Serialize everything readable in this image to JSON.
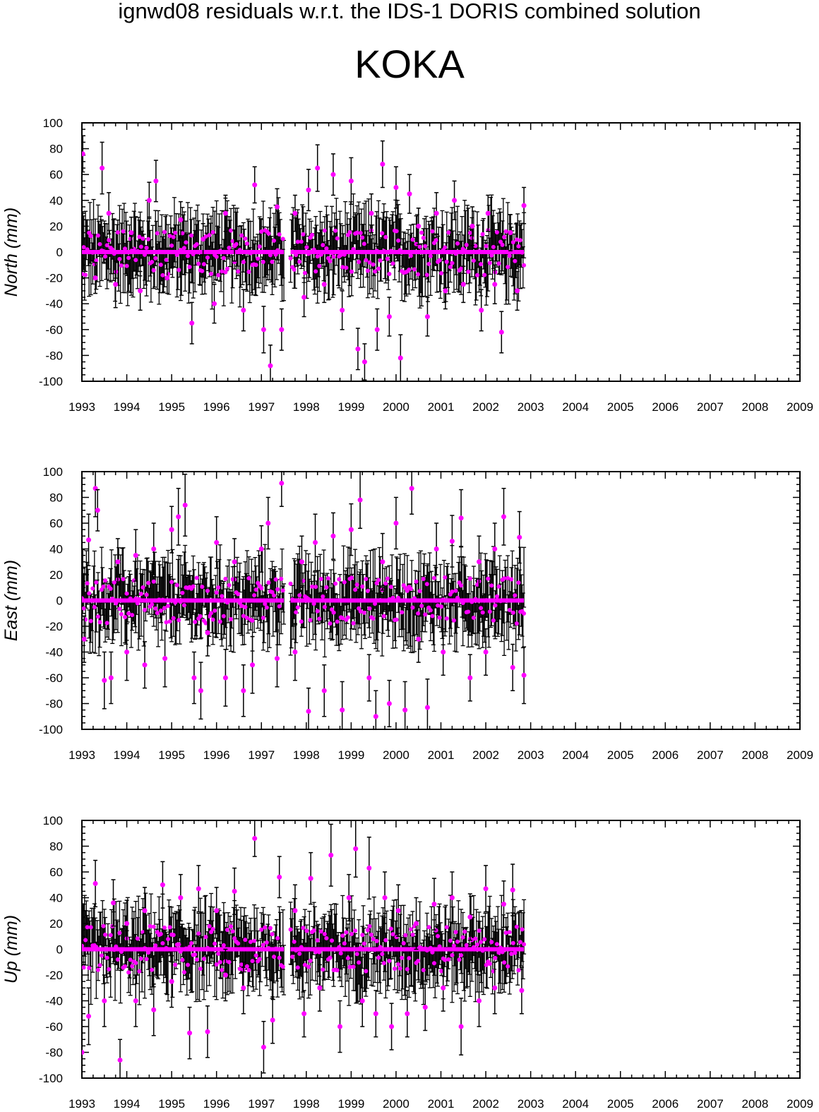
{
  "page": {
    "title": "ignwd08 residuals w.r.t. the IDS-1 DORIS combined solution",
    "station": "KOKA"
  },
  "colors": {
    "marker": "#ff00ff",
    "errorbar": "#000000",
    "axis": "#000000"
  },
  "chart_data": [
    {
      "type": "scatter",
      "ylabel": "North (mm)",
      "xlim": [
        1993,
        2009
      ],
      "ylim": [
        -100,
        100
      ],
      "x_ticks": [
        "1993",
        "1994",
        "1995",
        "1996",
        "1997",
        "1998",
        "1999",
        "2000",
        "2001",
        "2002",
        "2003",
        "2004",
        "2005",
        "2006",
        "2007",
        "2008",
        "2009"
      ],
      "y_ticks": [
        "100",
        "80",
        "60",
        "40",
        "20",
        "0",
        "-20",
        "-40",
        "-60",
        "-80",
        "-100"
      ],
      "grid": false,
      "data_span": [
        1993.0,
        1997.5,
        1997.65,
        2002.85
      ],
      "series": [
        {
          "x": [
            1993.02,
            1993.3,
            1993.45,
            1993.6,
            1993.75,
            1994.1,
            1994.3,
            1994.5,
            1994.65,
            1994.9,
            1995.2,
            1995.45,
            1995.7,
            1995.95,
            1996.2,
            1996.4,
            1996.6,
            1996.85,
            1997.05,
            1997.2,
            1997.35,
            1997.45,
            1997.75,
            1997.95,
            1998.05,
            1998.25,
            1998.4,
            1998.6,
            1998.8,
            1999.0,
            1999.15,
            1999.3,
            1999.45,
            1999.58,
            1999.7,
            1999.85,
            2000.0,
            2000.1,
            2000.3,
            2000.5,
            2000.7,
            2000.9,
            2001.1,
            2001.3,
            2001.5,
            2001.7,
            2001.9,
            2002.05,
            2002.2,
            2002.35,
            2002.55,
            2002.7,
            2002.85
          ],
          "y": [
            76,
            -20,
            65,
            30,
            -25,
            15,
            -30,
            40,
            55,
            -20,
            25,
            -55,
            10,
            -40,
            30,
            5,
            -45,
            52,
            -60,
            -88,
            35,
            -60,
            30,
            -35,
            48,
            65,
            -25,
            60,
            -45,
            55,
            -75,
            -85,
            30,
            -60,
            68,
            -50,
            50,
            -82,
            45,
            20,
            -50,
            30,
            -30,
            40,
            -25,
            20,
            -45,
            30,
            -25,
            -62,
            15,
            -30,
            36
          ],
          "err": [
            14,
            12,
            20,
            16,
            18,
            12,
            15,
            14,
            16,
            12,
            14,
            16,
            12,
            15,
            14,
            12,
            16,
            14,
            18,
            16,
            14,
            16,
            14,
            15,
            16,
            18,
            14,
            16,
            15,
            18,
            16,
            14,
            15,
            16,
            18,
            15,
            16,
            18,
            15,
            14,
            15,
            16,
            14,
            15,
            14,
            15,
            16,
            14,
            15,
            16,
            14,
            15,
            14
          ]
        }
      ]
    },
    {
      "type": "scatter",
      "ylabel": "East (mm)",
      "xlim": [
        1993,
        2009
      ],
      "ylim": [
        -100,
        100
      ],
      "x_ticks": [
        "1993",
        "1994",
        "1995",
        "1996",
        "1997",
        "1998",
        "1999",
        "2000",
        "2001",
        "2002",
        "2003",
        "2004",
        "2005",
        "2006",
        "2007",
        "2008",
        "2009"
      ],
      "y_ticks": [
        "100",
        "80",
        "60",
        "40",
        "20",
        "0",
        "-20",
        "-40",
        "-60",
        "-80",
        "-100"
      ],
      "grid": false,
      "data_span": [
        1993.0,
        1997.5,
        1997.65,
        2002.85
      ],
      "series": [
        {
          "x": [
            1993.05,
            1993.15,
            1993.3,
            1993.35,
            1993.5,
            1993.65,
            1993.8,
            1994.0,
            1994.2,
            1994.4,
            1994.6,
            1994.85,
            1995.0,
            1995.15,
            1995.3,
            1995.5,
            1995.65,
            1995.8,
            1996.0,
            1996.2,
            1996.4,
            1996.6,
            1996.8,
            1997.0,
            1997.15,
            1997.35,
            1997.45,
            1997.75,
            1997.9,
            1998.05,
            1998.2,
            1998.4,
            1998.6,
            1998.8,
            1999.0,
            1999.2,
            1999.4,
            1999.55,
            1999.7,
            1999.85,
            2000.0,
            2000.2,
            2000.35,
            2000.5,
            2000.7,
            2000.9,
            2001.05,
            2001.25,
            2001.45,
            2001.65,
            2001.85,
            2002.0,
            2002.2,
            2002.4,
            2002.6,
            2002.75,
            2002.85
          ],
          "y": [
            -30,
            47,
            87,
            70,
            -62,
            -60,
            30,
            -40,
            35,
            -50,
            40,
            -45,
            55,
            65,
            74,
            -60,
            -70,
            -25,
            45,
            -60,
            30,
            -70,
            -50,
            40,
            60,
            -45,
            91,
            -40,
            30,
            -86,
            45,
            -70,
            50,
            -85,
            55,
            78,
            -60,
            -90,
            30,
            -80,
            60,
            -85,
            87,
            -30,
            -83,
            40,
            -40,
            46,
            64,
            -60,
            30,
            -40,
            40,
            65,
            -52,
            49,
            -58
          ],
          "err": [
            18,
            20,
            22,
            16,
            22,
            20,
            18,
            22,
            20,
            18,
            20,
            22,
            18,
            22,
            24,
            20,
            22,
            18,
            20,
            22,
            18,
            20,
            22,
            18,
            20,
            22,
            18,
            22,
            20,
            18,
            22,
            20,
            18,
            22,
            20,
            22,
            18,
            20,
            22,
            18,
            20,
            22,
            20,
            18,
            22,
            20,
            18,
            20,
            22,
            18,
            20,
            18,
            20,
            22,
            18,
            20,
            22
          ]
        }
      ]
    },
    {
      "type": "scatter",
      "ylabel": "Up (mm)",
      "xlim": [
        1993,
        2009
      ],
      "ylim": [
        -100,
        100
      ],
      "x_ticks": [
        "1993",
        "1994",
        "1995",
        "1996",
        "1997",
        "1998",
        "1999",
        "2000",
        "2001",
        "2002",
        "2003",
        "2004",
        "2005",
        "2006",
        "2007",
        "2008",
        "2009"
      ],
      "y_ticks": [
        "100",
        "80",
        "60",
        "40",
        "20",
        "0",
        "-20",
        "-40",
        "-60",
        "-80",
        "-100"
      ],
      "grid": false,
      "data_span": [
        1993.0,
        1997.5,
        1997.65,
        2002.85
      ],
      "series": [
        {
          "x": [
            1993.0,
            1993.15,
            1993.3,
            1993.5,
            1993.7,
            1993.85,
            1994.0,
            1994.2,
            1994.4,
            1994.6,
            1994.8,
            1995.0,
            1995.2,
            1995.4,
            1995.6,
            1995.8,
            1996.0,
            1996.2,
            1996.4,
            1996.6,
            1996.85,
            1997.05,
            1997.25,
            1997.4,
            1997.75,
            1997.95,
            1998.1,
            1998.3,
            1998.55,
            1998.75,
            1998.95,
            1999.1,
            1999.25,
            1999.4,
            1999.55,
            1999.75,
            1999.9,
            2000.05,
            2000.25,
            2000.45,
            2000.65,
            2000.85,
            2001.05,
            2001.25,
            2001.45,
            2001.65,
            2001.85,
            2002.0,
            2002.2,
            2002.4,
            2002.6,
            2002.8
          ],
          "y": [
            -80,
            -52,
            51,
            -40,
            36,
            -86,
            20,
            -40,
            30,
            -47,
            50,
            -25,
            40,
            -65,
            47,
            -64,
            30,
            -20,
            45,
            -30,
            86,
            -76,
            -55,
            56,
            30,
            -50,
            55,
            -30,
            73,
            -60,
            40,
            78,
            -40,
            63,
            -50,
            40,
            -60,
            30,
            -50,
            20,
            -45,
            35,
            -30,
            40,
            -60,
            25,
            -40,
            47,
            -30,
            35,
            46,
            -32
          ],
          "err": [
            20,
            22,
            18,
            20,
            18,
            16,
            18,
            20,
            18,
            20,
            18,
            20,
            18,
            20,
            18,
            20,
            18,
            20,
            18,
            20,
            14,
            20,
            18,
            16,
            20,
            18,
            20,
            18,
            24,
            20,
            18,
            22,
            20,
            24,
            18,
            20,
            18,
            20,
            18,
            20,
            18,
            20,
            18,
            20,
            22,
            18,
            20,
            18,
            20,
            18,
            20,
            18
          ]
        }
      ]
    }
  ]
}
